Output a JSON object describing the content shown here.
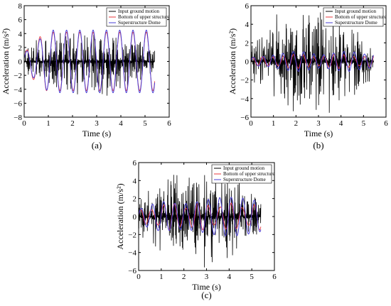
{
  "figure": {
    "legend_entries": [
      "Input ground motion",
      "Bottom of upper structure",
      "Superstructure Dome"
    ],
    "series_colors": {
      "input": "#000000",
      "bottom": "#e8383d",
      "dome": "#4a3fd6"
    }
  },
  "chart_data": [
    {
      "panel": "(a)",
      "type": "line",
      "xlabel": "Time (s)",
      "ylabel": "Acceleration (m/s²)",
      "xlim": [
        0,
        6
      ],
      "ylim": [
        -8,
        8
      ],
      "xticks": [
        0,
        1,
        2,
        3,
        4,
        5,
        6
      ],
      "yticks": [
        -8,
        -6,
        -4,
        -2,
        0,
        2,
        4,
        6,
        8
      ],
      "legend_position": "top-right",
      "duration": 5.4,
      "series": [
        {
          "name": "Input ground motion",
          "peak": 5.0,
          "cycles": 22
        },
        {
          "name": "Bottom of upper structure",
          "amplitude": 4.2,
          "period": 0.55
        },
        {
          "name": "Superstructure Dome",
          "amplitude": 4.5,
          "period": 0.55
        }
      ]
    },
    {
      "panel": "(b)",
      "type": "line",
      "xlabel": "Time (s)",
      "ylabel": "Acceleration (m/s²)",
      "xlim": [
        0,
        6
      ],
      "ylim": [
        -6,
        6
      ],
      "xticks": [
        0,
        1,
        2,
        3,
        4,
        5,
        6
      ],
      "yticks": [
        -6,
        -4,
        -2,
        0,
        2,
        4,
        6
      ],
      "legend_position": "top-right",
      "duration": 5.45,
      "series": [
        {
          "name": "Input ground motion",
          "peak": 6.0,
          "cycles": 26
        },
        {
          "name": "Bottom of upper structure",
          "amplitude": 0.6,
          "period": 0.45
        },
        {
          "name": "Superstructure Dome",
          "amplitude": 0.9,
          "period": 0.45
        }
      ]
    },
    {
      "panel": "(c)",
      "type": "line",
      "xlabel": "Time (s)",
      "ylabel": "Acceleration (m/s²)",
      "xlim": [
        0,
        6
      ],
      "ylim": [
        -6,
        6
      ],
      "xticks": [
        0,
        1,
        2,
        3,
        4,
        5,
        6
      ],
      "yticks": [
        -6,
        -4,
        -2,
        0,
        2,
        4,
        6
      ],
      "legend_position": "top-right",
      "duration": 5.4,
      "series": [
        {
          "name": "Input ground motion",
          "peak": 5.9,
          "cycles": 30
        },
        {
          "name": "Bottom of upper structure",
          "amplitude": 1.2,
          "period": 0.5
        },
        {
          "name": "Superstructure Dome",
          "amplitude": 1.8,
          "period": 0.5
        }
      ]
    }
  ]
}
